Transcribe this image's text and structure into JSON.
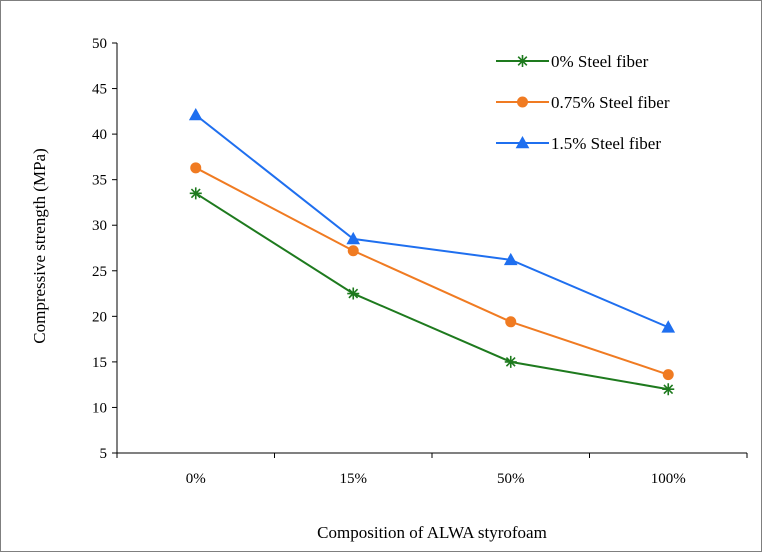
{
  "chart_data": {
    "type": "line",
    "title": "",
    "xlabel": "Composition of ALWA styrofoam",
    "ylabel": "Compressive strength (MPa)",
    "categories": [
      "0%",
      "15%",
      "50%",
      "100%"
    ],
    "ylim": [
      5,
      50
    ],
    "yticks": [
      5,
      10,
      15,
      20,
      25,
      30,
      35,
      40,
      45,
      50
    ],
    "grid": false,
    "legend_position": "top-right",
    "series": [
      {
        "name": "0% Steel fiber",
        "values": [
          33.5,
          22.5,
          15.0,
          12.0
        ],
        "color": "#1e7a1e",
        "marker": "asterisk"
      },
      {
        "name": "0.75% Steel fiber",
        "values": [
          36.3,
          27.2,
          19.4,
          13.6
        ],
        "color": "#f07b22",
        "marker": "circle"
      },
      {
        "name": "1.5% Steel fiber",
        "values": [
          42.1,
          28.5,
          26.2,
          18.8
        ],
        "color": "#1f6fef",
        "marker": "triangle"
      }
    ]
  }
}
